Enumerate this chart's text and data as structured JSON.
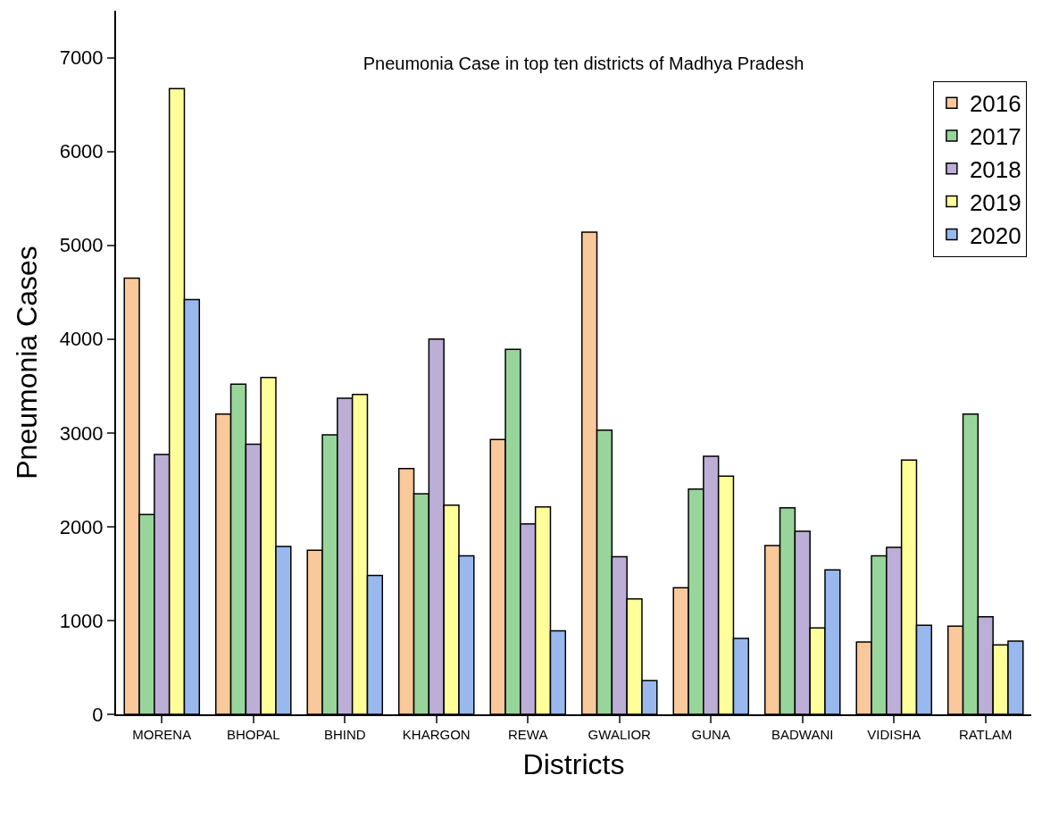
{
  "chart_data": {
    "type": "bar",
    "title": "Pneumonia Case in top ten districts of Madhya Pradesh",
    "xlabel": "Districts",
    "ylabel": "Pneumonia Cases",
    "categories": [
      "MORENA",
      "BHOPAL",
      "BHIND",
      "KHARGON",
      "REWA",
      "GWALIOR",
      "GUNA",
      "BADWANI",
      "VIDISHA",
      "RATLAM"
    ],
    "series": [
      {
        "name": "2016",
        "color": "#f9c89b",
        "values": [
          4650,
          3200,
          1750,
          2620,
          2930,
          5140,
          1350,
          1800,
          770,
          940
        ]
      },
      {
        "name": "2017",
        "color": "#98d59b",
        "values": [
          2130,
          3520,
          2980,
          2350,
          3890,
          3030,
          2400,
          2200,
          1690,
          3200
        ]
      },
      {
        "name": "2018",
        "color": "#bcaed6",
        "values": [
          2770,
          2880,
          3370,
          4000,
          2030,
          1680,
          2750,
          1950,
          1780,
          1040
        ]
      },
      {
        "name": "2019",
        "color": "#ffff99",
        "values": [
          6670,
          3590,
          3410,
          2230,
          2210,
          1230,
          2540,
          920,
          2710,
          740
        ]
      },
      {
        "name": "2020",
        "color": "#98b8ee",
        "values": [
          4420,
          1790,
          1480,
          1690,
          890,
          360,
          810,
          1540,
          950,
          780
        ]
      }
    ],
    "ylim": [
      0,
      7500
    ],
    "yticks": [
      0,
      1000,
      2000,
      3000,
      4000,
      5000,
      6000,
      7000
    ],
    "legend": "top right"
  }
}
